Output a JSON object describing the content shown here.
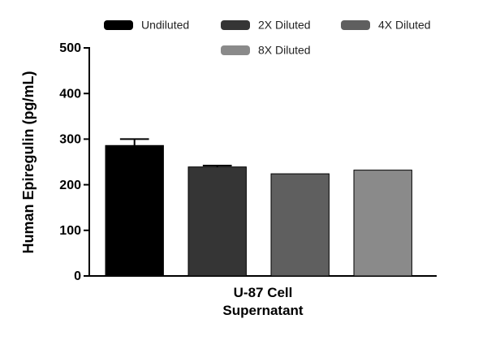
{
  "chart_data": {
    "type": "bar",
    "y_label": "Human Epiregulin (pg/mL)",
    "categories": [
      "U-87 Cell\nSupernatant"
    ],
    "series": [
      {
        "name": "Undiluted",
        "color": "#000000",
        "values": [
          286
        ],
        "errors": [
          14
        ]
      },
      {
        "name": "2X Diluted",
        "color": "#353535",
        "values": [
          239
        ],
        "errors": [
          3
        ]
      },
      {
        "name": "4X Diluted",
        "color": "#5f5f5f",
        "values": [
          224
        ]
      },
      {
        "name": "8X Diluted",
        "color": "#8a8a8a",
        "values": [
          232
        ]
      }
    ],
    "ylim": [
      0,
      500
    ],
    "yticks": [
      0,
      100,
      200,
      300,
      400,
      500
    ]
  }
}
